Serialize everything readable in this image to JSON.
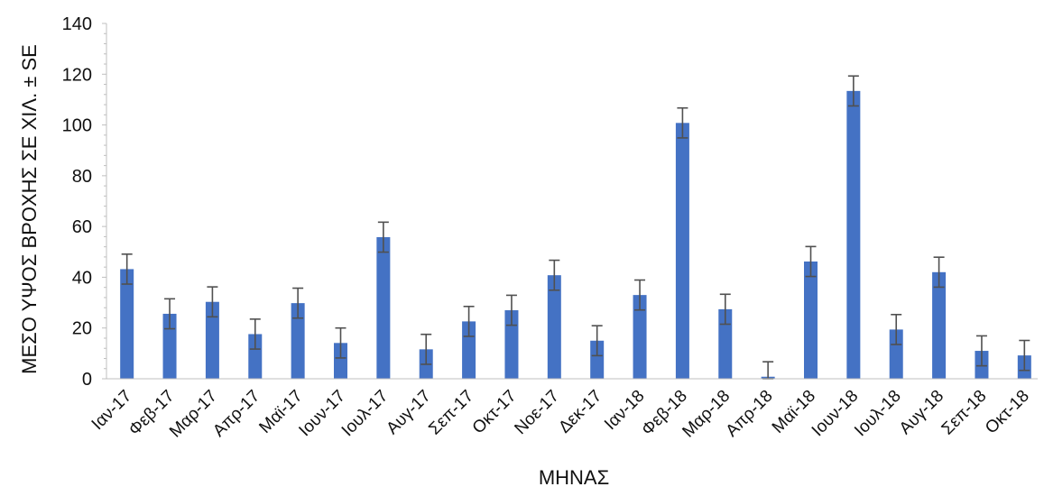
{
  "chart_data": {
    "type": "bar",
    "title": "",
    "xlabel": "ΜΗΝΑΣ",
    "ylabel": "ΜΕΣΟ ΥΨΟΣ ΒΡΟΧΗΣ ΣΕ ΧΙΛ. ± SE",
    "ylim": [
      0,
      140
    ],
    "yticks": [
      0,
      20,
      40,
      60,
      80,
      100,
      120,
      140
    ],
    "grid": false,
    "legend": "none",
    "categories": [
      "Ιαν-17",
      "Φεβ-17",
      "Μαρ-17",
      "Απρ-17",
      "Μαϊ-17",
      "Ιουν-17",
      "Ιουλ-17",
      "Αυγ-17",
      "Σεπ-17",
      "Οκτ-17",
      "Νοε-17",
      "Δεκ-17",
      "Ιαν-18",
      "Φεβ-18",
      "Μαρ-18",
      "Απρ-18",
      "Μαϊ-18",
      "Ιουν-18",
      "Ιουλ-18",
      "Αυγ-18",
      "Σεπ-18",
      "Οκτ-18"
    ],
    "values": [
      43.2,
      25.6,
      30.3,
      17.6,
      29.8,
      14.1,
      55.8,
      11.6,
      22.6,
      27.0,
      40.8,
      15.0,
      33.0,
      100.8,
      27.4,
      0.8,
      46.2,
      113.4,
      19.4,
      42.0,
      11.0,
      9.2
    ],
    "error": [
      5.9,
      5.9,
      5.9,
      5.9,
      5.9,
      5.9,
      5.9,
      5.9,
      5.9,
      5.9,
      5.9,
      5.9,
      5.9,
      5.9,
      5.9,
      5.9,
      5.9,
      5.9,
      5.9,
      5.9,
      5.9,
      5.9
    ],
    "colors": {
      "bar": "#4472C4",
      "error": "#505050",
      "axis": "#BFBFBF"
    }
  }
}
